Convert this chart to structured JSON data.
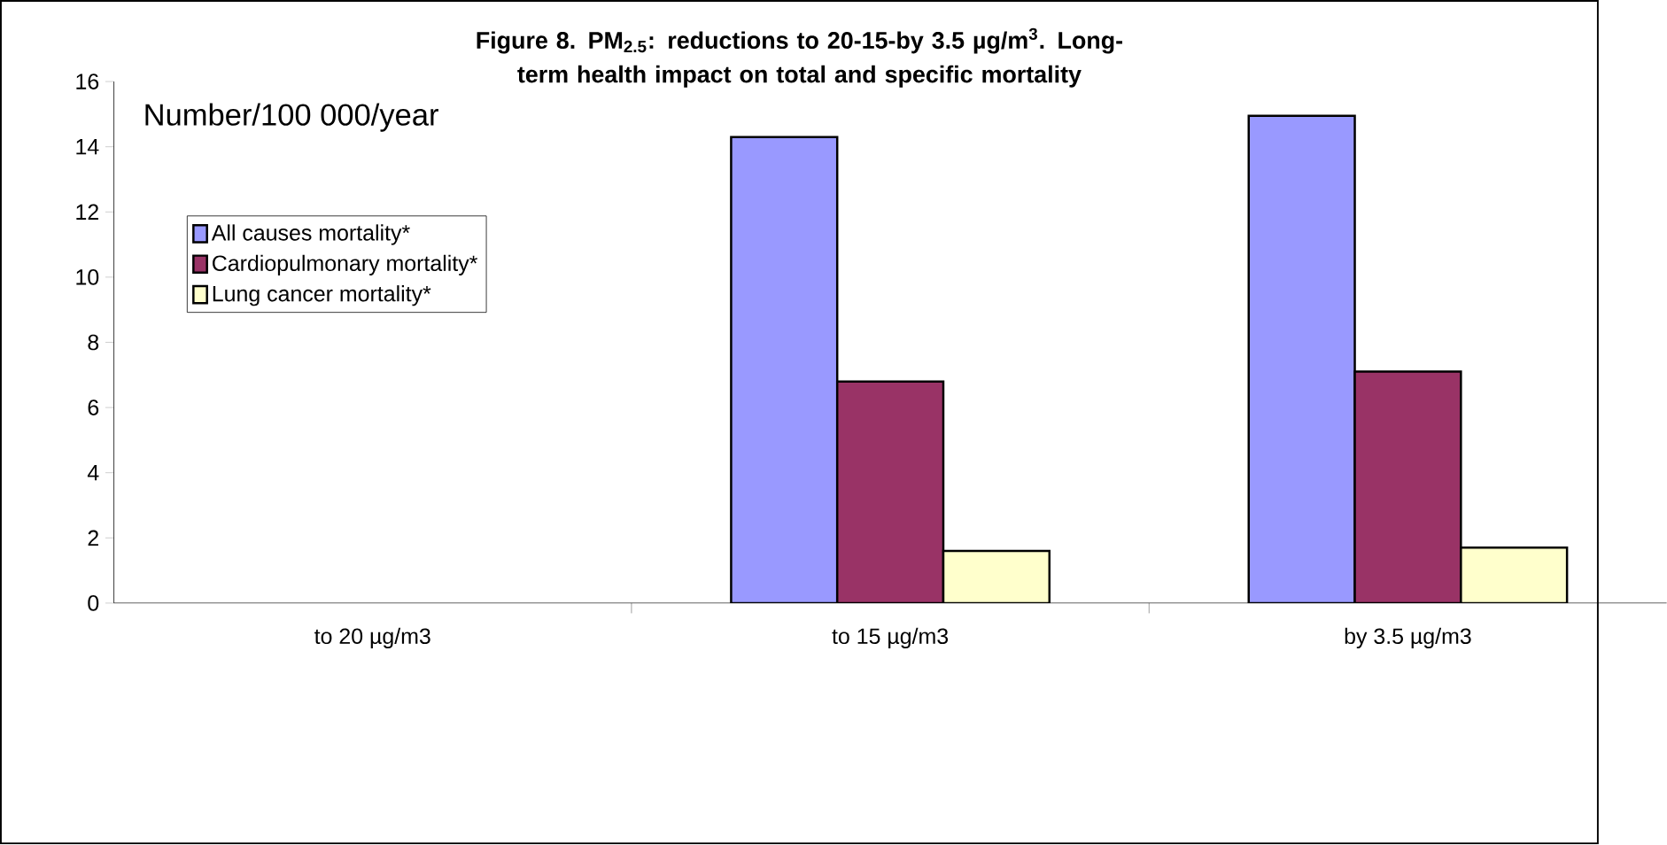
{
  "chart_data": {
    "type": "bar",
    "title": "**Figure 8. PM$_{2.5}$: reductions to 20-15-by 3.5 µg/m$^{3}$. Long-term health impact on total and specific mortality**",
    "categories": [
      "to 20 µg/m3",
      "to 15 µg/m3",
      "by 3.5 µg/m3"
    ],
    "series": [
      {
        "name": "All causes mortality*",
        "color": "#9999ff",
        "values": [
          null,
          14.3,
          14.95
        ]
      },
      {
        "name": "Cardiopulmonary mortality*",
        "color": "#993366",
        "values": [
          null,
          6.8,
          7.1
        ]
      },
      {
        "name": "Lung cancer mortality*",
        "color": "#ffffcc",
        "values": [
          null,
          1.6,
          1.7
        ]
      }
    ],
    "ylim": [
      0,
      16
    ],
    "yticks": [
      0,
      2,
      4,
      6,
      8,
      10,
      12,
      14,
      16
    ],
    "grid": false,
    "legend": "left",
    "annotations": [
      "Number/100 000/year"
    ]
  }
}
